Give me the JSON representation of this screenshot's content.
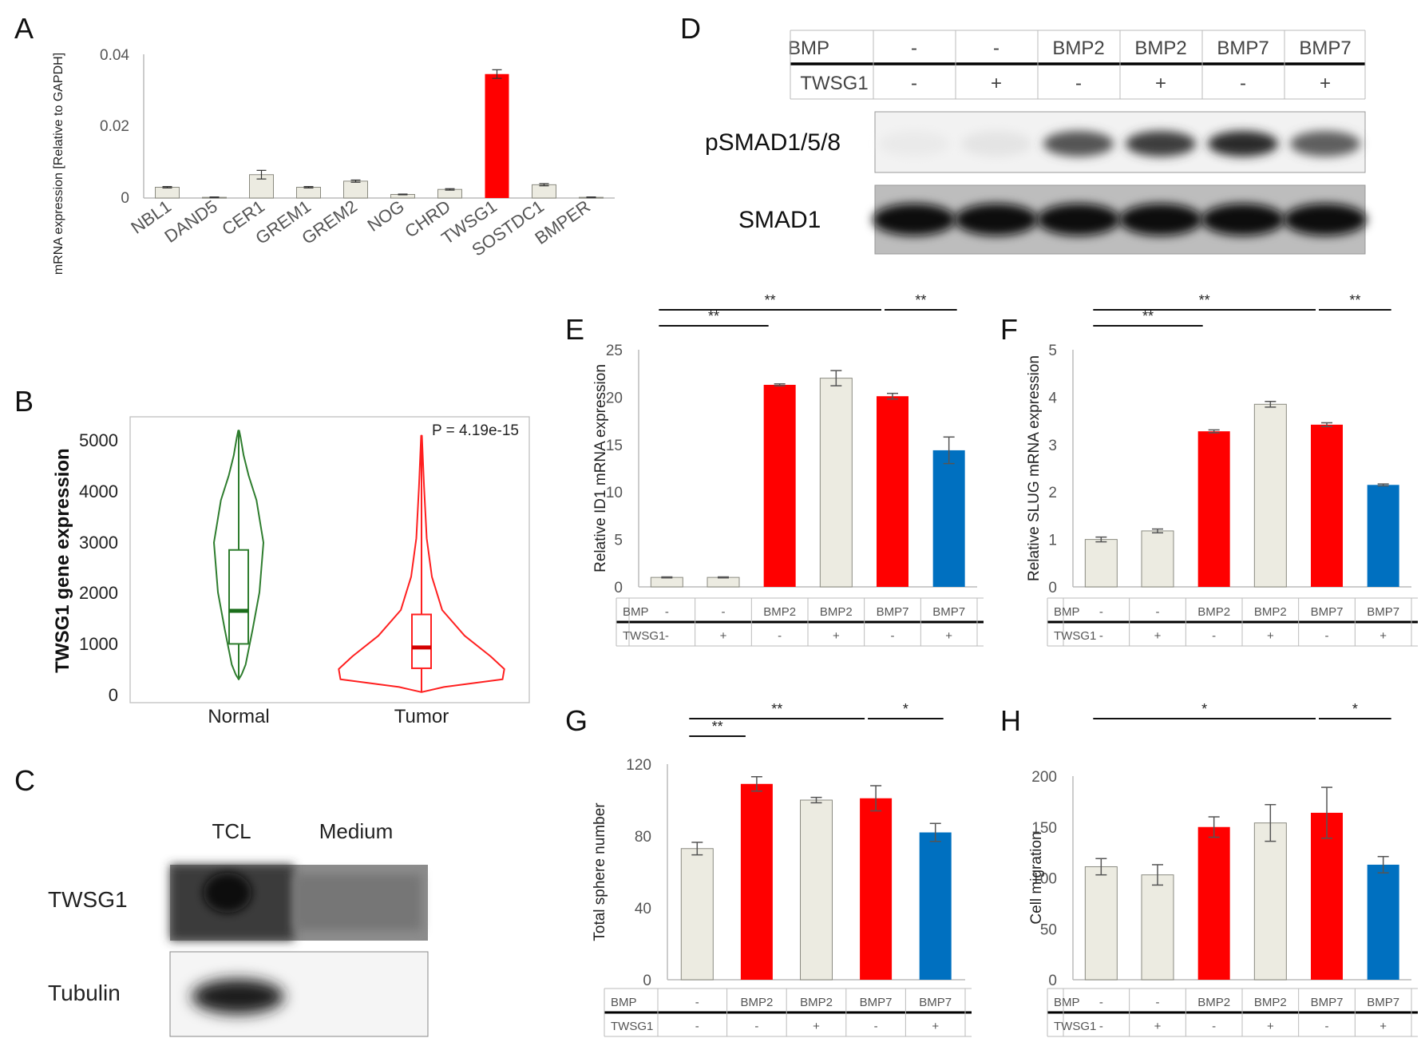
{
  "panel_letters": [
    "A",
    "B",
    "C",
    "D",
    "E",
    "F",
    "G",
    "H"
  ],
  "colors": {
    "beige": "#ecebe1",
    "red": "#ff0000",
    "blue": "#0070c0",
    "normal": "#2e7d2e",
    "tumor": "#ff2020"
  },
  "chart_data": [
    {
      "panel": "A",
      "type": "bar",
      "ylabel": "mRNA expression [Relative to GAPDH]",
      "ylim": [
        0,
        0.04
      ],
      "yticks": [
        "0",
        "0.02",
        "0.04"
      ],
      "categories": [
        "NBL1",
        "DAND5",
        "CER1",
        "GREM1",
        "GREM2",
        "NOG",
        "CHRD",
        "TWSG1",
        "SOSTDC1",
        "BMPER"
      ],
      "values": [
        0.003,
        0.0002,
        0.0065,
        0.003,
        0.0047,
        0.001,
        0.0024,
        0.0345,
        0.0037,
        0.0002
      ],
      "errors": [
        0.0002,
        0.0001,
        0.0012,
        0.0002,
        0.0003,
        0.0001,
        0.0002,
        0.0012,
        0.0003,
        0.0001
      ],
      "colors": [
        "beige",
        "beige",
        "beige",
        "beige",
        "beige",
        "beige",
        "beige",
        "red",
        "beige",
        "beige"
      ]
    },
    {
      "panel": "B",
      "type": "violin",
      "ylabel": "TWSG1 gene expression",
      "ylim": [
        0,
        5200
      ],
      "yticks": [
        "0",
        "1000",
        "2000",
        "3000",
        "4000",
        "5000"
      ],
      "annotation": "P = 4.19e-15",
      "groups": [
        {
          "name": "Normal",
          "min": 300,
          "q1": 1000,
          "median": 1650,
          "q3": 2850,
          "max": 5200,
          "color": "normal"
        },
        {
          "name": "Tumor",
          "min": 50,
          "q1": 520,
          "median": 930,
          "q3": 1580,
          "max": 5100,
          "color": "tumor"
        }
      ]
    },
    {
      "panel": "E",
      "type": "bar",
      "ylabel": "Relative ID1 mRNA expression",
      "ylim": [
        0,
        25
      ],
      "yticks": [
        "0",
        "5",
        "10",
        "15",
        "20",
        "25"
      ],
      "values": [
        1.0,
        1.0,
        21.3,
        22.0,
        20.1,
        14.4
      ],
      "errors": [
        0.05,
        0.05,
        0.1,
        0.8,
        0.3,
        1.4
      ],
      "colors": [
        "beige",
        "beige",
        "red",
        "beige",
        "red",
        "blue"
      ],
      "table": {
        "rows": [
          {
            "label": "BMP",
            "cells": [
              "-",
              "-",
              "BMP2",
              "BMP2",
              "BMP7",
              "BMP7"
            ]
          },
          {
            "label": "TWSG1",
            "cells": [
              "-",
              "+",
              "-",
              "+",
              "-",
              "+"
            ]
          }
        ]
      },
      "sig": [
        {
          "from": 0,
          "to": 2,
          "text": "**"
        },
        {
          "from": 0,
          "to": 4,
          "text": "**"
        },
        {
          "from": 4,
          "to": 5,
          "text": "**"
        }
      ]
    },
    {
      "panel": "F",
      "type": "bar",
      "ylabel": "Relative SLUG mRNA expression",
      "ylim": [
        0,
        5
      ],
      "yticks": [
        "0",
        "1",
        "2",
        "3",
        "4",
        "5"
      ],
      "values": [
        1.0,
        1.18,
        3.28,
        3.85,
        3.42,
        2.15
      ],
      "errors": [
        0.05,
        0.04,
        0.03,
        0.06,
        0.04,
        0.02
      ],
      "colors": [
        "beige",
        "beige",
        "red",
        "beige",
        "red",
        "blue"
      ],
      "table": {
        "rows": [
          {
            "label": "BMP",
            "cells": [
              "-",
              "-",
              "BMP2",
              "BMP2",
              "BMP7",
              "BMP7"
            ]
          },
          {
            "label": "TWSG1",
            "cells": [
              "-",
              "+",
              "-",
              "+",
              "-",
              "+"
            ]
          }
        ]
      },
      "sig": [
        {
          "from": 0,
          "to": 2,
          "text": "**"
        },
        {
          "from": 0,
          "to": 4,
          "text": "**"
        },
        {
          "from": 4,
          "to": 5,
          "text": "**"
        }
      ]
    },
    {
      "panel": "G",
      "type": "bar",
      "ylabel": "Total sphere number",
      "ylim": [
        0,
        120
      ],
      "yticks": [
        "0",
        "40",
        "80",
        "120"
      ],
      "values": [
        73,
        109,
        100,
        101,
        82
      ],
      "errors": [
        3.5,
        4,
        1.5,
        7,
        5
      ],
      "colors": [
        "beige",
        "red",
        "beige",
        "red",
        "blue"
      ],
      "table": {
        "rows": [
          {
            "label": "BMP",
            "cells": [
              "-",
              "BMP2",
              "BMP2",
              "BMP7",
              "BMP7"
            ]
          },
          {
            "label": "TWSG1",
            "cells": [
              "-",
              "-",
              "+",
              "-",
              "+"
            ]
          }
        ]
      },
      "sig": [
        {
          "from": 0,
          "to": 1,
          "text": "**"
        },
        {
          "from": 0,
          "to": 3,
          "text": "**"
        },
        {
          "from": 3,
          "to": 4,
          "text": "*"
        }
      ]
    },
    {
      "panel": "H",
      "type": "bar",
      "ylabel": "Cell migration",
      "ylim": [
        0,
        200
      ],
      "yticks": [
        "0",
        "50",
        "100",
        "150",
        "200"
      ],
      "values": [
        111,
        103,
        150,
        154,
        164,
        113
      ],
      "errors": [
        8,
        10,
        10,
        18,
        25,
        8
      ],
      "colors": [
        "beige",
        "beige",
        "red",
        "beige",
        "red",
        "blue"
      ],
      "table": {
        "rows": [
          {
            "label": "BMP",
            "cells": [
              "-",
              "-",
              "BMP2",
              "BMP2",
              "BMP7",
              "BMP7"
            ]
          },
          {
            "label": "TWSG1",
            "cells": [
              "-",
              "+",
              "-",
              "+",
              "-",
              "+"
            ]
          }
        ]
      },
      "sig": [
        {
          "from": 0,
          "to": 4,
          "text": "*"
        },
        {
          "from": 4,
          "to": 5,
          "text": "*"
        }
      ]
    }
  ],
  "blot_c": {
    "columns": [
      "TCL",
      "Medium"
    ],
    "rows": [
      "TWSG1",
      "Tubulin"
    ]
  },
  "blot_d": {
    "table": {
      "rows": [
        {
          "label": "BMP",
          "cells": [
            "-",
            "-",
            "BMP2",
            "BMP2",
            "BMP7",
            "BMP7"
          ]
        },
        {
          "label": "TWSG1",
          "cells": [
            "-",
            "+",
            "-",
            "+",
            "-",
            "+"
          ]
        }
      ]
    },
    "rows": [
      "pSMAD1/5/8",
      "SMAD1"
    ],
    "psmad_intensity": [
      0.05,
      0.08,
      0.75,
      0.85,
      0.95,
      0.7
    ],
    "smad_intensity": [
      0.95,
      0.95,
      0.95,
      0.95,
      0.95,
      1.0
    ]
  }
}
